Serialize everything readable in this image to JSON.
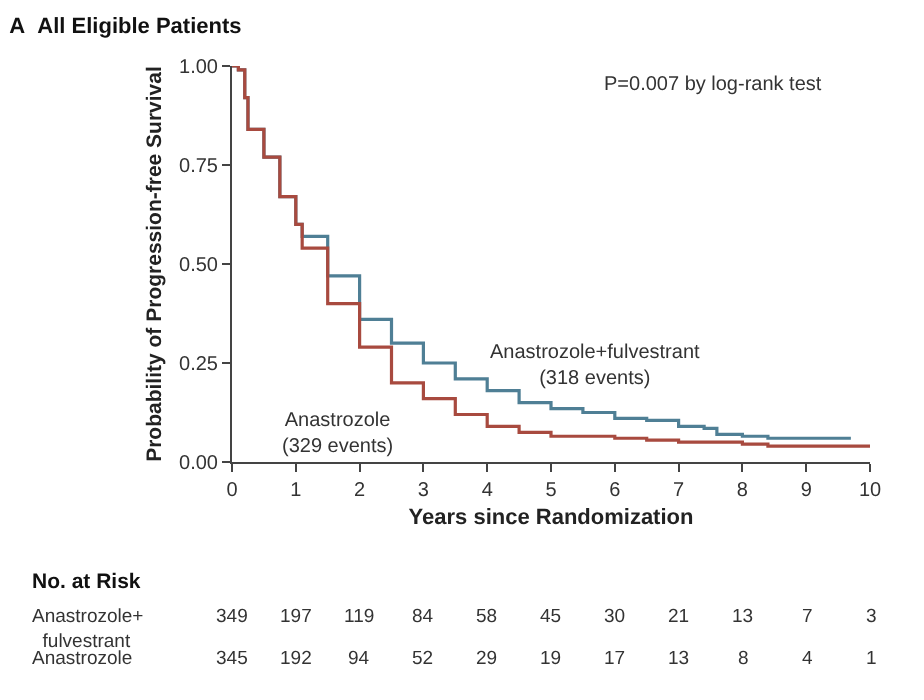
{
  "chart_data": {
    "type": "step",
    "title": "A  All Eligible Patients",
    "xlabel": "Years since Randomization",
    "ylabel": "Probability of Progression-free Survival",
    "xlim": [
      0,
      10
    ],
    "xticks": [
      0,
      1,
      2,
      3,
      4,
      5,
      6,
      7,
      8,
      9,
      10
    ],
    "ylim": [
      0,
      1
    ],
    "yticks": [
      {
        "value": 0,
        "label": "0.00"
      },
      {
        "value": 0.25,
        "label": "0.25"
      },
      {
        "value": 0.5,
        "label": "0.50"
      },
      {
        "value": 0.75,
        "label": "0.75"
      },
      {
        "value": 1,
        "label": "1.00"
      }
    ],
    "grid": false,
    "legend": false,
    "series": [
      {
        "name": "Anastrozole+fulvestrant",
        "color": "#4f7f95",
        "x": [
          0,
          0.1,
          0.2,
          0.25,
          0.5,
          0.75,
          1.0,
          1.1,
          1.5,
          2.0,
          2.5,
          3.0,
          3.5,
          4.0,
          4.5,
          5.0,
          5.5,
          6.0,
          6.5,
          7.0,
          7.4,
          7.6,
          8.0,
          8.4,
          9.7
        ],
        "values": [
          1.0,
          0.99,
          0.92,
          0.84,
          0.77,
          0.67,
          0.6,
          0.57,
          0.47,
          0.36,
          0.3,
          0.25,
          0.21,
          0.18,
          0.15,
          0.135,
          0.125,
          0.11,
          0.105,
          0.09,
          0.085,
          0.07,
          0.065,
          0.06,
          0.06
        ]
      },
      {
        "name": "Anastrozole",
        "color": "#a84a3f",
        "x": [
          0,
          0.1,
          0.2,
          0.25,
          0.5,
          0.75,
          1.0,
          1.1,
          1.5,
          2.0,
          2.5,
          3.0,
          3.5,
          4.0,
          4.5,
          5.0,
          6.0,
          6.5,
          7.0,
          8.0,
          8.4,
          10.0
        ],
        "values": [
          1.0,
          0.99,
          0.92,
          0.84,
          0.77,
          0.67,
          0.6,
          0.54,
          0.4,
          0.29,
          0.2,
          0.16,
          0.12,
          0.09,
          0.075,
          0.065,
          0.06,
          0.055,
          0.05,
          0.045,
          0.04,
          0.04
        ]
      }
    ],
    "annotations": [
      "P=0.007 by log-rank test",
      "(318 events)",
      "(329 events)",
      "No. at Risk",
      "Anastrozole+\n  fulvestrant",
      "349 197 119 84 58 45 30 21 13 7 3",
      "Anastrozole",
      "345 192 94 52 29 19 17 13 8 4 1"
    ]
  }
}
